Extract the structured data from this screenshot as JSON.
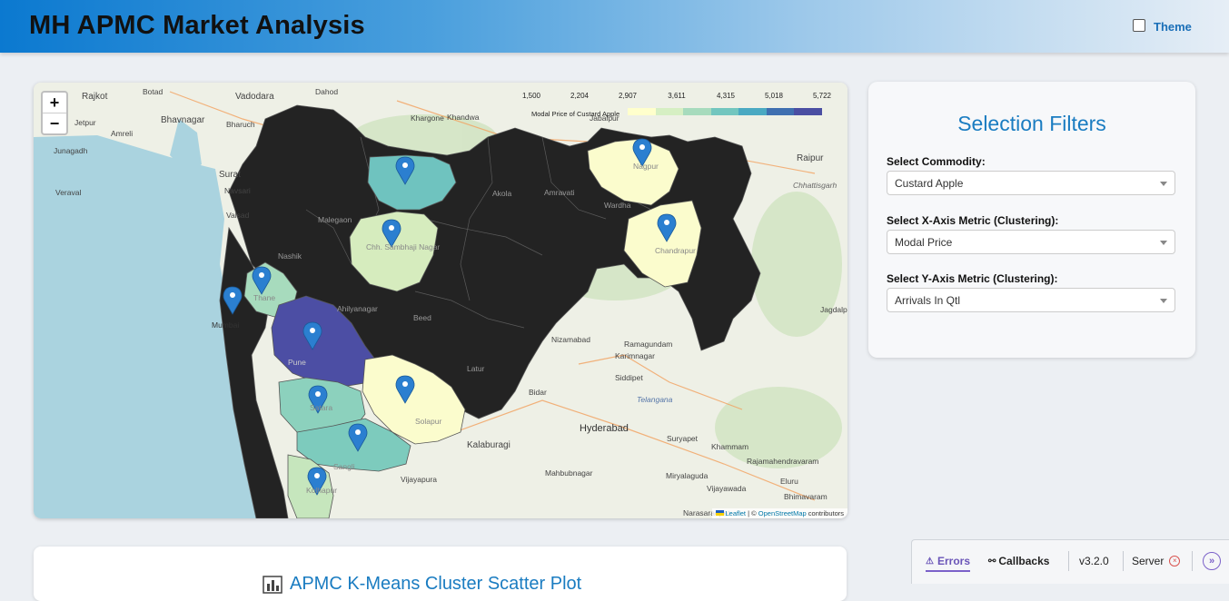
{
  "header": {
    "title": "MH APMC Market Analysis",
    "theme_label": "Theme",
    "theme_checked": false
  },
  "map": {
    "zoom_in": "+",
    "zoom_out": "−",
    "legend": {
      "ticks": [
        "1,500",
        "2,204",
        "2,907",
        "3,611",
        "4,315",
        "5,018",
        "5,722"
      ],
      "title": "Modal Price of Custard Apple",
      "colors": [
        "#ffffcc",
        "#d6efc3",
        "#a7dbbd",
        "#72c6bf",
        "#4aa9c2",
        "#3f6fb0",
        "#4a4ea2"
      ]
    },
    "attribution": {
      "leaflet": "Leaflet",
      "sep": " | © ",
      "osm": "OpenStreetMap",
      "suffix": " contributors"
    },
    "place_labels": [
      "Rajkot",
      "Botad",
      "Vadodara",
      "Dahod",
      "Bhavnagar",
      "Jetpur",
      "Amreli",
      "Bharuch",
      "Junagadh",
      "Surat",
      "Navsari",
      "Veraval",
      "Valsad",
      "Khargone",
      "Khandwa",
      "Jabalpur",
      "Raipur",
      "Chhattisgarh",
      "Jagdalpur",
      "Nizamabad",
      "Ramagundam",
      "Karimnagar",
      "Siddipet",
      "Telangana",
      "Bidar",
      "Hyderabad",
      "Kalaburagi",
      "Suryapet",
      "Khammam",
      "Rajamahendravaram",
      "Eluru",
      "Vijayawada",
      "Bhimavaram",
      "Narasaraopet",
      "Mahbubnagar",
      "Miryalaguda",
      "Vijayapura",
      "Malegaon",
      "Nashik",
      "Akola",
      "Amravati",
      "Wardha",
      "Beed",
      "Latur",
      "Ahilyanagar",
      "Pune",
      "Solapur",
      "Satara",
      "Sangli",
      "Chh. Sambhaji Nagar",
      "Nagpur",
      "Chandrapur",
      "Thane",
      "Mumbai",
      "Kolhapur"
    ]
  },
  "filters": {
    "title": "Selection Filters",
    "commodity": {
      "label": "Select Commodity:",
      "value": "Custard Apple"
    },
    "x_metric": {
      "label": "Select X-Axis Metric (Clustering):",
      "value": "Modal Price"
    },
    "y_metric": {
      "label": "Select Y-Axis Metric (Clustering):",
      "value": "Arrivals In Qtl"
    }
  },
  "scatter": {
    "title": "APMC K-Means Cluster Scatter Plot"
  },
  "devtools": {
    "errors": "Errors",
    "callbacks": "Callbacks",
    "version": "v3.2.0",
    "server": "Server"
  }
}
